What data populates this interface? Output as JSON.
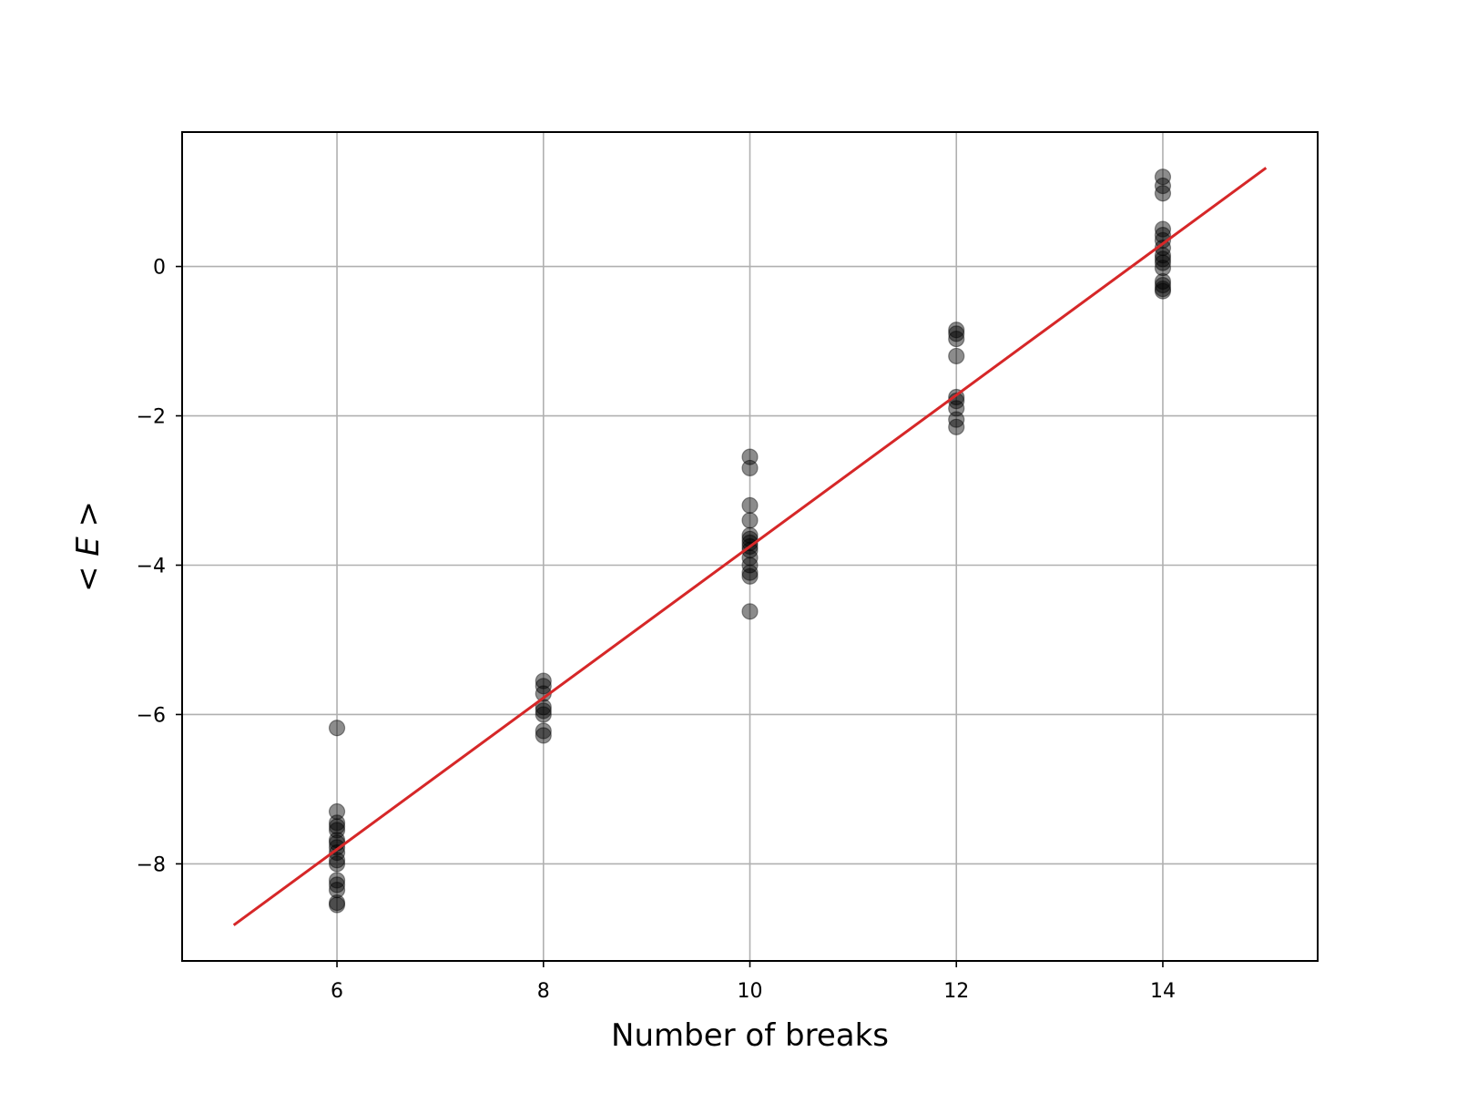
{
  "chart_data": {
    "type": "scatter",
    "xlabel": "Number of breaks",
    "ylabel": "< E >",
    "xlim": [
      4.5,
      15.5
    ],
    "ylim": [
      -9.3,
      1.8
    ],
    "x_ticks": [
      6,
      8,
      10,
      12,
      14
    ],
    "y_ticks": [
      0,
      -2,
      -4,
      -6,
      -8
    ],
    "grid": true,
    "points_color": "#000000",
    "points_opacity": 0.45,
    "series": [
      {
        "kind": "scatter",
        "points": [
          [
            6,
            -6.18
          ],
          [
            6,
            -7.3
          ],
          [
            6,
            -7.45
          ],
          [
            6,
            -7.5
          ],
          [
            6,
            -7.55
          ],
          [
            6,
            -7.68
          ],
          [
            6,
            -7.72
          ],
          [
            6,
            -7.78
          ],
          [
            6,
            -7.85
          ],
          [
            6,
            -7.95
          ],
          [
            6,
            -8.0
          ],
          [
            6,
            -8.22
          ],
          [
            6,
            -8.28
          ],
          [
            6,
            -8.35
          ],
          [
            6,
            -8.52
          ],
          [
            6,
            -8.55
          ],
          [
            8,
            -5.55
          ],
          [
            8,
            -5.62
          ],
          [
            8,
            -5.72
          ],
          [
            8,
            -5.9
          ],
          [
            8,
            -5.95
          ],
          [
            8,
            -6.0
          ],
          [
            8,
            -6.22
          ],
          [
            8,
            -6.28
          ],
          [
            10,
            -2.55
          ],
          [
            10,
            -2.7
          ],
          [
            10,
            -3.2
          ],
          [
            10,
            -3.4
          ],
          [
            10,
            -3.6
          ],
          [
            10,
            -3.65
          ],
          [
            10,
            -3.7
          ],
          [
            10,
            -3.75
          ],
          [
            10,
            -3.8
          ],
          [
            10,
            -3.9
          ],
          [
            10,
            -4.0
          ],
          [
            10,
            -4.1
          ],
          [
            10,
            -4.15
          ],
          [
            10,
            -4.62
          ],
          [
            12,
            -0.85
          ],
          [
            12,
            -0.9
          ],
          [
            12,
            -0.97
          ],
          [
            12,
            -1.2
          ],
          [
            12,
            -1.75
          ],
          [
            12,
            -1.8
          ],
          [
            12,
            -1.9
          ],
          [
            12,
            -2.05
          ],
          [
            12,
            -2.15
          ],
          [
            14,
            1.2
          ],
          [
            14,
            1.08
          ],
          [
            14,
            0.98
          ],
          [
            14,
            0.5
          ],
          [
            14,
            0.42
          ],
          [
            14,
            0.35
          ],
          [
            14,
            0.25
          ],
          [
            14,
            0.15
          ],
          [
            14,
            0.1
          ],
          [
            14,
            0.05
          ],
          [
            14,
            -0.02
          ],
          [
            14,
            -0.2
          ],
          [
            14,
            -0.25
          ],
          [
            14,
            -0.3
          ],
          [
            14,
            -0.33
          ]
        ]
      },
      {
        "kind": "line",
        "color": "#d62728",
        "points": [
          [
            5,
            -8.82
          ],
          [
            15,
            1.32
          ]
        ]
      }
    ]
  }
}
